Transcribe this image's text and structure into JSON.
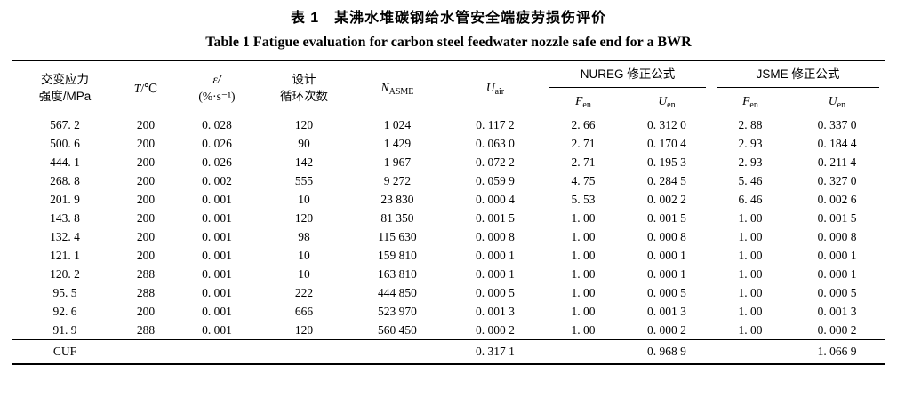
{
  "page": {
    "title_zh": "表 1　某沸水堆碳钢给水管安全端疲劳损伤评价",
    "title_en": "Table 1   Fatigue evaluation for carbon steel feedwater nozzle safe end for a BWR"
  },
  "table": {
    "headers": {
      "col1_line1": "交变应力",
      "col1_line2": "强度/MPa",
      "t_symbol": "T",
      "t_unit": "/℃",
      "strain_line1": "ε̇/",
      "strain_line2": "(%·s⁻¹)",
      "col4_line1": "设计",
      "col4_line2": "循环次数",
      "n_asme": {
        "base": "N",
        "sub": "ASME"
      },
      "u_air": {
        "base": "U",
        "sub": "air"
      },
      "group_nureg": "NUREG 修正公式",
      "group_jsme": "JSME 修正公式",
      "fen": {
        "base": "F",
        "sub": "en"
      },
      "uen": {
        "base": "U",
        "sub": "en"
      }
    },
    "rows": [
      [
        "567. 2",
        "200",
        "0. 028",
        "120",
        "1 024",
        "0. 117 2",
        "2. 66",
        "0. 312 0",
        "2. 88",
        "0. 337 0"
      ],
      [
        "500. 6",
        "200",
        "0. 026",
        "90",
        "1 429",
        "0. 063 0",
        "2. 71",
        "0. 170 4",
        "2. 93",
        "0. 184 4"
      ],
      [
        "444. 1",
        "200",
        "0. 026",
        "142",
        "1 967",
        "0. 072 2",
        "2. 71",
        "0. 195 3",
        "2. 93",
        "0. 211 4"
      ],
      [
        "268. 8",
        "200",
        "0. 002",
        "555",
        "9 272",
        "0. 059 9",
        "4. 75",
        "0. 284 5",
        "5. 46",
        "0. 327 0"
      ],
      [
        "201. 9",
        "200",
        "0. 001",
        "10",
        "23 830",
        "0. 000 4",
        "5. 53",
        "0. 002 2",
        "6. 46",
        "0. 002 6"
      ],
      [
        "143. 8",
        "200",
        "0. 001",
        "120",
        "81 350",
        "0. 001 5",
        "1. 00",
        "0. 001 5",
        "1. 00",
        "0. 001 5"
      ],
      [
        "132. 4",
        "200",
        "0. 001",
        "98",
        "115 630",
        "0. 000 8",
        "1. 00",
        "0. 000 8",
        "1. 00",
        "0. 000 8"
      ],
      [
        "121. 1",
        "200",
        "0. 001",
        "10",
        "159 810",
        "0. 000 1",
        "1. 00",
        "0. 000 1",
        "1. 00",
        "0. 000 1"
      ],
      [
        "120. 2",
        "288",
        "0. 001",
        "10",
        "163 810",
        "0. 000 1",
        "1. 00",
        "0. 000 1",
        "1. 00",
        "0. 000 1"
      ],
      [
        "95. 5",
        "288",
        "0. 001",
        "222",
        "444 850",
        "0. 000 5",
        "1. 00",
        "0. 000 5",
        "1. 00",
        "0. 000 5"
      ],
      [
        "92. 6",
        "200",
        "0. 001",
        "666",
        "523 970",
        "0. 001 3",
        "1. 00",
        "0. 001 3",
        "1. 00",
        "0. 001 3"
      ],
      [
        "91. 9",
        "288",
        "0. 001",
        "120",
        "560 450",
        "0. 000 2",
        "1. 00",
        "0. 000 2",
        "1. 00",
        "0. 000 2"
      ]
    ],
    "footer": {
      "label": "CUF",
      "u_air_total": "0. 317 1",
      "nureg_uen_total": "0. 968 9",
      "jsme_uen_total": "1. 066 9"
    }
  }
}
